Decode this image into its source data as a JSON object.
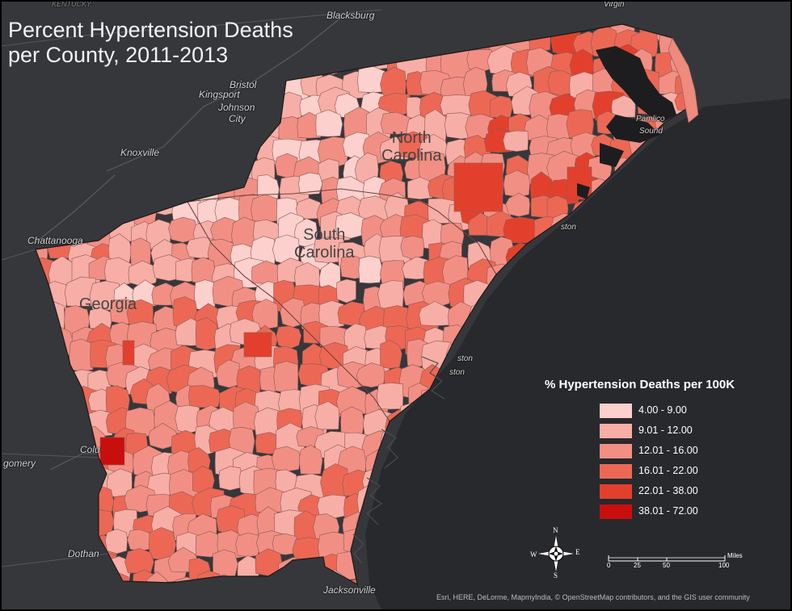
{
  "title_lines": [
    "Percent Hypertension Deaths",
    "per County, 2011-2013"
  ],
  "states": [
    {
      "lines": [
        "North",
        "Carolina"
      ]
    },
    {
      "lines": [
        "South",
        "Carolina"
      ]
    },
    {
      "lines": [
        "Georgia"
      ]
    }
  ],
  "places": [
    "Blacksburg",
    "Bristol",
    "Kingsport",
    "Johnson",
    "City",
    "Knoxville",
    "Chattanooga",
    "Colu",
    "gomery",
    "Dothan",
    "Jacksonville",
    "Pamlico",
    "Sound",
    "ston",
    "ston",
    "ston",
    "KENTUCKY",
    "Virgin"
  ],
  "legend": {
    "title": "% Hypertension Deaths per 100K",
    "classes": [
      {
        "label": "4.00 - 9.00",
        "color": "#fbd0cd"
      },
      {
        "label": "9.01 - 12.00",
        "color": "#f7aea6"
      },
      {
        "label": "12.01 - 16.00",
        "color": "#f28f84"
      },
      {
        "label": "16.01 - 22.00",
        "color": "#ec6855"
      },
      {
        "label": "22.01 - 38.00",
        "color": "#e2402d"
      },
      {
        "label": "38.01 - 72.00",
        "color": "#c90e0e"
      }
    ]
  },
  "compass": {
    "n": "N",
    "s": "S",
    "e": "E",
    "w": "W"
  },
  "scale": {
    "labels": [
      "0",
      "25",
      "50",
      "100"
    ],
    "unit": "Miles"
  },
  "credits": "Esri, HERE, DeLorme, MapmyIndia, © OpenStreetMap contributors, and the GIS user community",
  "colors": {
    "background": "#2e2f33",
    "ocean": "#28292c",
    "county_border": "#8a5a55",
    "sound": "#1d1d1f"
  }
}
